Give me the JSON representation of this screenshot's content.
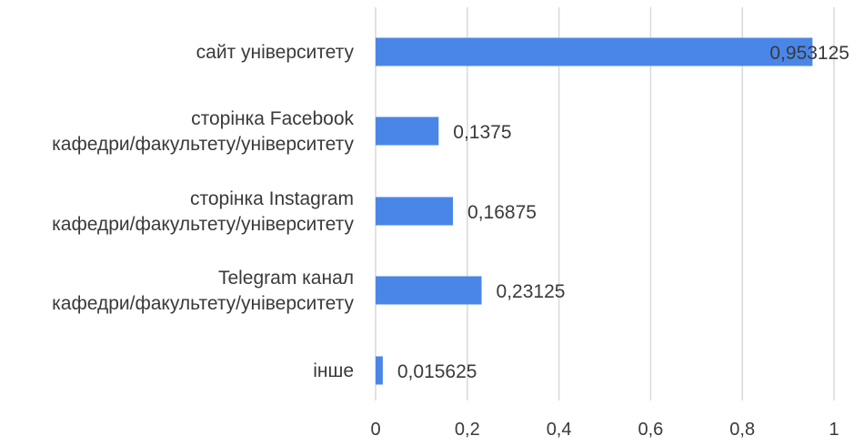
{
  "chart_data": {
    "type": "bar",
    "orientation": "horizontal",
    "categories": [
      [
        "сайт університету"
      ],
      [
        "сторінка Facebook",
        "кафедри/факультету/університету"
      ],
      [
        "сторінка Instagram",
        "кафедри/факультету/університету"
      ],
      [
        "Telegram канал",
        "кафедри/факультету/університету"
      ],
      [
        "інше"
      ]
    ],
    "values": [
      0.953125,
      0.1375,
      0.16875,
      0.23125,
      0.015625
    ],
    "value_labels": [
      "0,953125",
      "0,1375",
      "0,16875",
      "0,23125",
      "0,015625"
    ],
    "xlim": [
      0,
      1
    ],
    "x_ticks": [
      0,
      0.2,
      0.4,
      0.6,
      0.8,
      1
    ],
    "x_tick_labels": [
      "0",
      "0,2",
      "0,4",
      "0,6",
      "0,8",
      "1"
    ],
    "grid": "vertical",
    "bar_color": "#4a86e8",
    "title": "",
    "xlabel": "",
    "ylabel": ""
  }
}
